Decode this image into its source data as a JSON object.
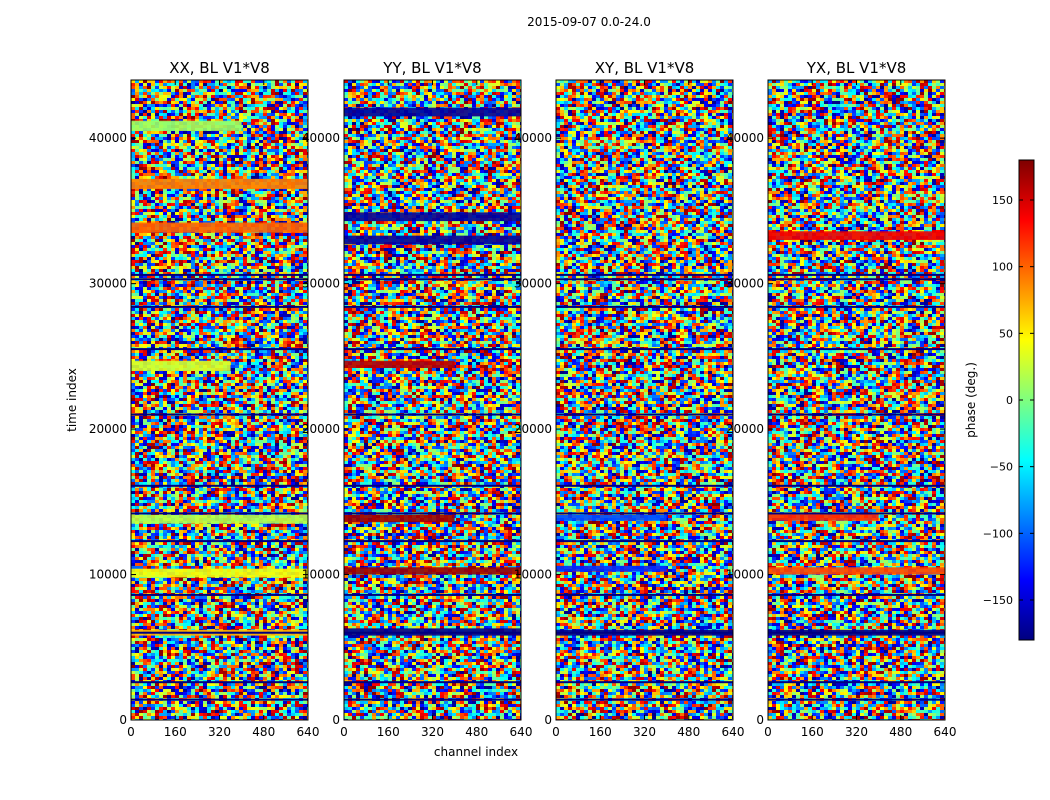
{
  "chart_data": {
    "type": "heatmap",
    "suptitle": "2015-09-07 0.0-24.0",
    "xlabel": "channel index",
    "ylabel": "time index",
    "xlim": [
      0,
      640
    ],
    "ylim": [
      0,
      44000
    ],
    "xticks": [
      0,
      160,
      320,
      480,
      640
    ],
    "yticks": [
      0,
      10000,
      20000,
      30000,
      40000
    ],
    "panels": [
      {
        "title": "XX, BL V1*V8",
        "polarization": "XX"
      },
      {
        "title": "YY, BL V1*V8",
        "polarization": "YY"
      },
      {
        "title": "XY, BL V1*V8",
        "polarization": "XY"
      },
      {
        "title": "YX, BL V1*V8",
        "polarization": "YX"
      }
    ],
    "colorbar": {
      "label": "phase (deg.)",
      "range": [
        -180,
        180
      ],
      "ticks": [
        150,
        100,
        50,
        0,
        -50,
        -100,
        -150
      ],
      "tick_labels": [
        "150",
        "100",
        "50",
        "0",
        "−50",
        "−100",
        "−150"
      ],
      "colormap": "jet",
      "colors": [
        "#00007f",
        "#0000ff",
        "#007fff",
        "#00ffff",
        "#7fff7f",
        "#ffff00",
        "#ff7f00",
        "#ff0000",
        "#7f0000"
      ]
    },
    "description": "Phase vs channel (x) and time index (y); mostly noisy phase with horizontal bands of coherent phase",
    "phase_bands": [
      {
        "panel": "XX",
        "t_start": 40500,
        "t_end": 41200,
        "phase": 10,
        "ch_end": 400
      },
      {
        "panel": "XX",
        "t_start": 36500,
        "t_end": 37200,
        "phase": 90,
        "ch_end": 640
      },
      {
        "panel": "XX",
        "t_start": 33500,
        "t_end": 34200,
        "phase": 100,
        "ch_end": 640
      },
      {
        "panel": "XX",
        "t_start": 24000,
        "t_end": 24700,
        "phase": 30,
        "ch_end": 360
      },
      {
        "panel": "XX",
        "t_start": 13500,
        "t_end": 14100,
        "phase": 20,
        "ch_end": 640
      },
      {
        "panel": "XX",
        "t_start": 9800,
        "t_end": 10400,
        "phase": 40,
        "ch_end": 640
      },
      {
        "panel": "XX",
        "t_start": 5800,
        "t_end": 6200,
        "phase": 70,
        "ch_end": 640
      },
      {
        "panel": "YY",
        "t_start": 41500,
        "t_end": 42100,
        "phase": -170,
        "ch_end": 640
      },
      {
        "panel": "YY",
        "t_start": 34300,
        "t_end": 34900,
        "phase": -170,
        "ch_end": 640
      },
      {
        "panel": "YY",
        "t_start": 32700,
        "t_end": 33300,
        "phase": -170,
        "ch_end": 640
      },
      {
        "panel": "YY",
        "t_start": 24200,
        "t_end": 24700,
        "phase": 160,
        "ch_end": 400
      },
      {
        "panel": "YY",
        "t_start": 13600,
        "t_end": 14100,
        "phase": 170,
        "ch_end": 400
      },
      {
        "panel": "YY",
        "t_start": 10000,
        "t_end": 10500,
        "phase": 170,
        "ch_end": 640
      },
      {
        "panel": "YY",
        "t_start": 5800,
        "t_end": 6300,
        "phase": -175,
        "ch_end": 640
      },
      {
        "panel": "XY",
        "t_start": 13700,
        "t_end": 14100,
        "phase": -110,
        "ch_end": 400
      },
      {
        "panel": "XY",
        "t_start": 10200,
        "t_end": 10600,
        "phase": -120,
        "ch_end": 400
      },
      {
        "panel": "XY",
        "t_start": 5800,
        "t_end": 6200,
        "phase": -175,
        "ch_end": 640
      },
      {
        "panel": "YX",
        "t_start": 33000,
        "t_end": 33600,
        "phase": 140,
        "ch_end": 640
      },
      {
        "panel": "YX",
        "t_start": 13700,
        "t_end": 14200,
        "phase": 120,
        "ch_end": 400
      },
      {
        "panel": "YX",
        "t_start": 10000,
        "t_end": 10500,
        "phase": 110,
        "ch_end": 640
      },
      {
        "panel": "YX",
        "t_start": 5800,
        "t_end": 6200,
        "phase": -175,
        "ch_end": 640
      }
    ],
    "flagged_rows": [
      30600,
      30300,
      28400,
      25500,
      21000,
      16100,
      14200,
      12300,
      8600,
      6000,
      2600,
      1400
    ]
  }
}
